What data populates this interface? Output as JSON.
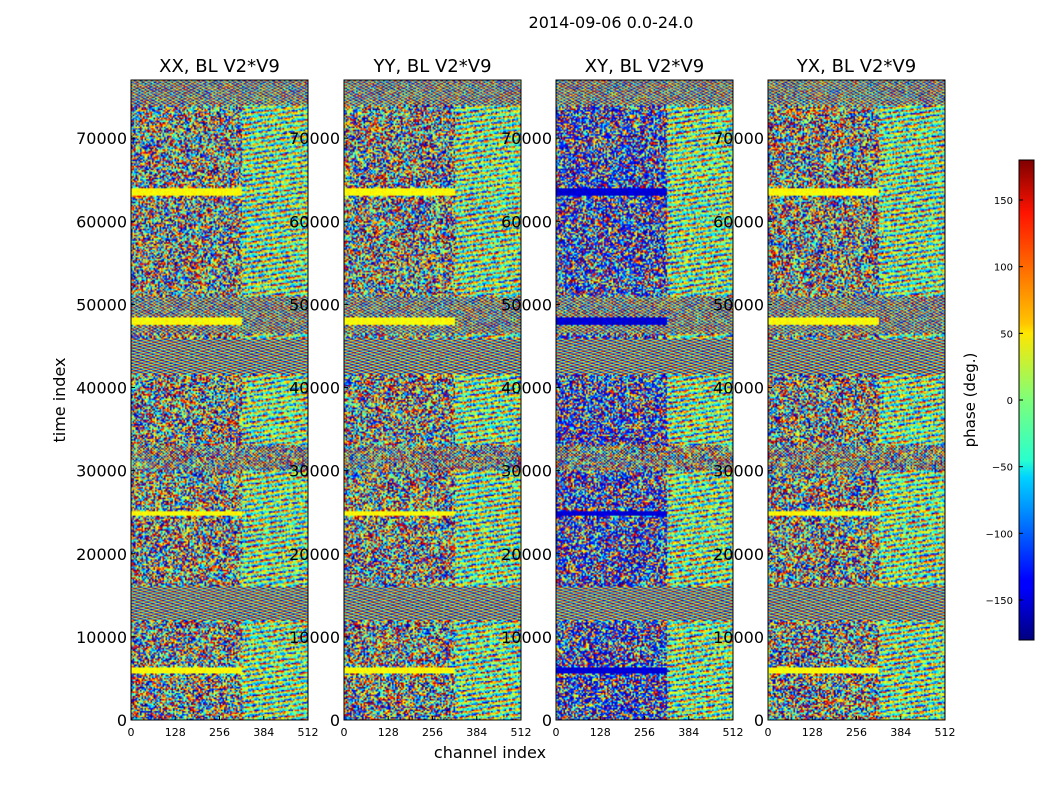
{
  "figure": {
    "suptitle": "2014-09-06 0.0-24.0"
  },
  "chart_data": {
    "type": "heatmap",
    "suptitle": "2014-09-06 0.0-24.0",
    "xlabel": "channel index",
    "ylabel": "time index",
    "xlim": [
      0,
      512
    ],
    "ylim": [
      0,
      77000
    ],
    "xticks": [
      0,
      128,
      256,
      384,
      512
    ],
    "xtick_labels": [
      "0",
      "128",
      "256",
      "384",
      "512"
    ],
    "yticks": [
      0,
      10000,
      20000,
      30000,
      40000,
      50000,
      60000,
      70000
    ],
    "ytick_labels": [
      "0",
      "10000",
      "20000",
      "30000",
      "40000",
      "50000",
      "60000",
      "70000"
    ],
    "colormap": "jet",
    "colorbar": {
      "label": "phase (deg.)",
      "range": [
        -180,
        180
      ],
      "ticks": [
        -150,
        -100,
        -50,
        0,
        50,
        100,
        150
      ],
      "tick_labels": [
        "−150",
        "−100",
        "−50",
        "0",
        "50",
        "100",
        "150"
      ]
    },
    "panels": [
      {
        "title": "XX, BL V2*V9",
        "pol": "XX",
        "baseline": "V2*V9",
        "bias": 45
      },
      {
        "title": "YY, BL V2*V9",
        "pol": "YY",
        "baseline": "V2*V9",
        "bias": 45
      },
      {
        "title": "XY, BL V2*V9",
        "pol": "XY",
        "baseline": "V2*V9",
        "bias": -150
      },
      {
        "title": "YX, BL V2*V9",
        "pol": "YX",
        "baseline": "V2*V9",
        "bias": 45
      }
    ],
    "fringe_bands": [
      {
        "range": [
          12000,
          16000
        ],
        "strength": "strong"
      },
      {
        "range": [
          41500,
          46000
        ],
        "strength": "strong"
      },
      {
        "range": [
          30000,
          33000
        ],
        "strength": "weak"
      },
      {
        "range": [
          46500,
          51000
        ],
        "strength": "medium"
      },
      {
        "range": [
          74000,
          77000
        ],
        "strength": "medium"
      }
    ],
    "flagged_bands": [
      {
        "range": [
          24500,
          25200
        ]
      },
      {
        "range": [
          47500,
          48400
        ]
      },
      {
        "range": [
          63000,
          64000
        ]
      },
      {
        "range": [
          5600,
          6400
        ]
      }
    ]
  }
}
